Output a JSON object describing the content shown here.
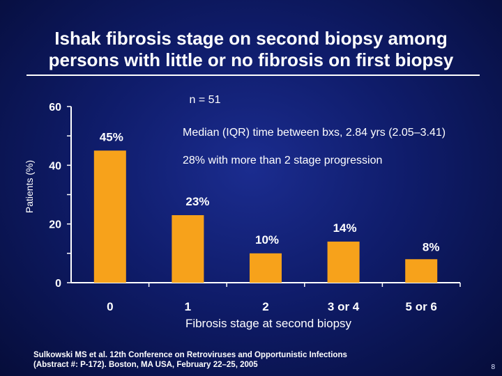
{
  "slide": {
    "title_line1": "Ishak fibrosis stage on second biopsy among",
    "title_line2": "persons with little or no fibrosis on first biopsy",
    "footer_line1": "Sulkowski MS et al. 12th Conference on Retroviruses and Opportunistic Infections",
    "footer_line2": "(Abstract #: P-172). Boston, MA USA, February 22–25, 2005",
    "page_number": "8"
  },
  "colors": {
    "bar": "#f7a21b",
    "text": "#ffffff",
    "background": "#0f1c6a"
  },
  "chart_data": {
    "type": "bar",
    "title": "",
    "xlabel": "Fibrosis stage at second biopsy",
    "ylabel": "Patients (%)",
    "categories": [
      "0",
      "1",
      "2",
      "3 or 4",
      "5 or 6"
    ],
    "values": [
      45,
      23,
      10,
      14,
      8
    ],
    "value_labels": [
      "45%",
      "23%",
      "10%",
      "14%",
      "8%"
    ],
    "ylim": [
      0,
      60
    ],
    "yticks": [
      0,
      20,
      40,
      60
    ],
    "grid": false,
    "annotations": [
      "n = 51",
      "Median (IQR) time between bxs, 2.84 yrs (2.05–3.41)",
      "28% with more than 2 stage progression"
    ]
  }
}
